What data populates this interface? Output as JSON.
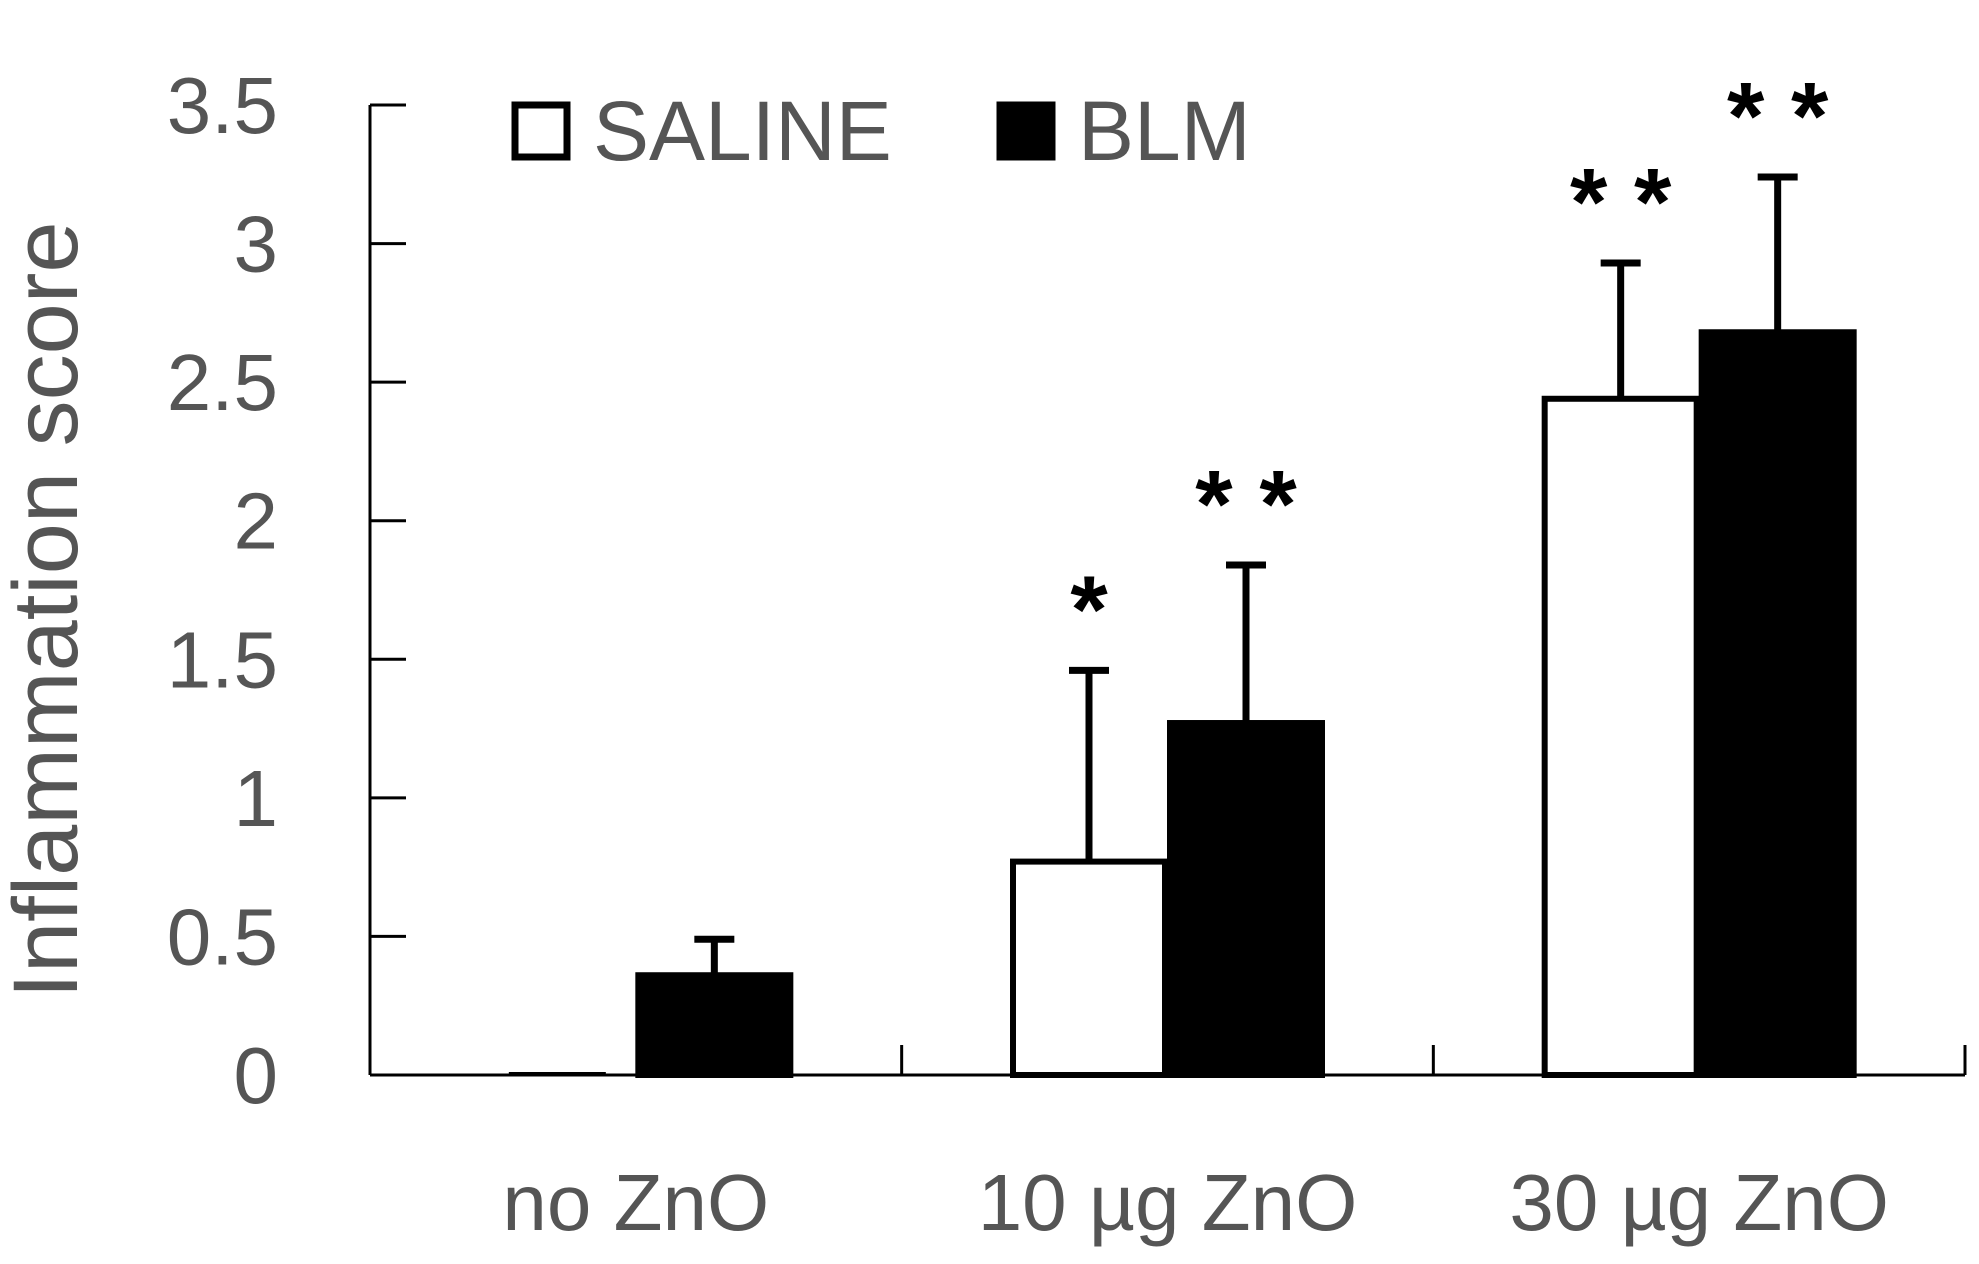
{
  "chart_data": {
    "type": "bar",
    "title": "",
    "xlabel": "",
    "ylabel": "Inflammation score",
    "ylim": [
      0,
      3.5
    ],
    "yticks": [
      "0",
      "0.5",
      "1",
      "1.5",
      "2",
      "2.5",
      "3",
      "3.5"
    ],
    "categories": [
      "no ZnO",
      "10 µg ZnO",
      "30 µg ZnO"
    ],
    "legend_position": "top-left",
    "series": [
      {
        "name": "SALINE",
        "fill": "#ffffff",
        "stroke": "#000000",
        "values": [
          0.0,
          0.77,
          2.44
        ],
        "errors": [
          0.0,
          0.69,
          0.49
        ],
        "significance": [
          "",
          "*",
          "**"
        ]
      },
      {
        "name": "BLM",
        "fill": "#000000",
        "stroke": "#000000",
        "values": [
          0.36,
          1.27,
          2.68
        ],
        "errors": [
          0.13,
          0.57,
          0.56
        ],
        "significance": [
          "",
          "**",
          "**"
        ]
      }
    ]
  }
}
